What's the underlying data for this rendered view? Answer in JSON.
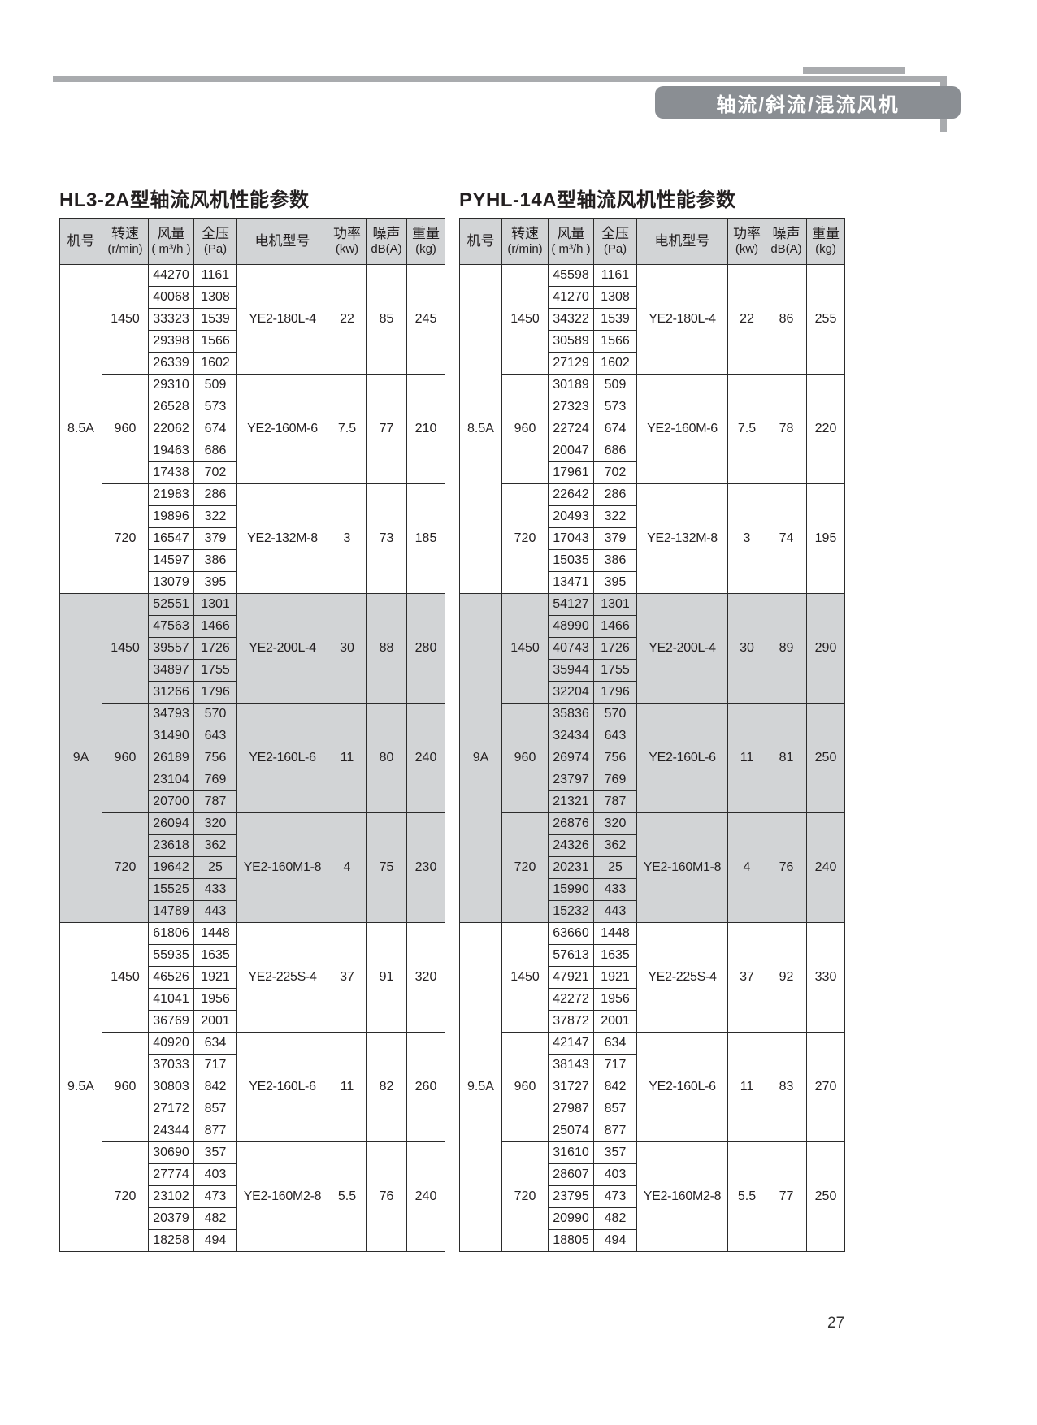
{
  "header": {
    "tab_label": "轴流/斜流/混流风机"
  },
  "footer": {
    "page_number": "27"
  },
  "colors": {
    "accent_gray": "#a9abae",
    "tab_gray": "#8a8e93",
    "shade_gray": "#d2d4d6",
    "border": "#2b2b2b"
  },
  "tables": [
    {
      "title": "HL3-2A型轴流风机性能参数",
      "column_headers": [
        {
          "line1": "机号",
          "line2": ""
        },
        {
          "line1": "转速",
          "line2": "(r/min)"
        },
        {
          "line1": "风量",
          "line2": "( m³/h )"
        },
        {
          "line1": "全压",
          "line2": "(Pa)"
        },
        {
          "line1": "电机型号",
          "line2": ""
        },
        {
          "line1": "功率",
          "line2": "(kw)"
        },
        {
          "line1": "噪声",
          "line2": "dB(A)"
        },
        {
          "line1": "重量",
          "line2": "(kg)"
        }
      ],
      "groups": [
        {
          "model": "8.5A",
          "shaded": false,
          "blocks": [
            {
              "speed": "1450",
              "motor": "YE2-180L-4",
              "power": "22",
              "noise": "85",
              "weight": "245",
              "rows": [
                [
                  "44270",
                  "1161"
                ],
                [
                  "40068",
                  "1308"
                ],
                [
                  "33323",
                  "1539"
                ],
                [
                  "29398",
                  "1566"
                ],
                [
                  "26339",
                  "1602"
                ]
              ]
            },
            {
              "speed": "960",
              "motor": "YE2-160M-6",
              "power": "7.5",
              "noise": "77",
              "weight": "210",
              "rows": [
                [
                  "29310",
                  "509"
                ],
                [
                  "26528",
                  "573"
                ],
                [
                  "22062",
                  "674"
                ],
                [
                  "19463",
                  "686"
                ],
                [
                  "17438",
                  "702"
                ]
              ]
            },
            {
              "speed": "720",
              "motor": "YE2-132M-8",
              "power": "3",
              "noise": "73",
              "weight": "185",
              "rows": [
                [
                  "21983",
                  "286"
                ],
                [
                  "19896",
                  "322"
                ],
                [
                  "16547",
                  "379"
                ],
                [
                  "14597",
                  "386"
                ],
                [
                  "13079",
                  "395"
                ]
              ]
            }
          ]
        },
        {
          "model": "9A",
          "shaded": true,
          "blocks": [
            {
              "speed": "1450",
              "motor": "YE2-200L-4",
              "power": "30",
              "noise": "88",
              "weight": "280",
              "rows": [
                [
                  "52551",
                  "1301"
                ],
                [
                  "47563",
                  "1466"
                ],
                [
                  "39557",
                  "1726"
                ],
                [
                  "34897",
                  "1755"
                ],
                [
                  "31266",
                  "1796"
                ]
              ]
            },
            {
              "speed": "960",
              "motor": "YE2-160L-6",
              "power": "11",
              "noise": "80",
              "weight": "240",
              "rows": [
                [
                  "34793",
                  "570"
                ],
                [
                  "31490",
                  "643"
                ],
                [
                  "26189",
                  "756"
                ],
                [
                  "23104",
                  "769"
                ],
                [
                  "20700",
                  "787"
                ]
              ]
            },
            {
              "speed": "720",
              "motor": "YE2-160M1-8",
              "power": "4",
              "noise": "75",
              "weight": "230",
              "rows": [
                [
                  "26094",
                  "320"
                ],
                [
                  "23618",
                  "362"
                ],
                [
                  "19642",
                  "25"
                ],
                [
                  "15525",
                  "433"
                ],
                [
                  "14789",
                  "443"
                ]
              ]
            }
          ]
        },
        {
          "model": "9.5A",
          "shaded": false,
          "blocks": [
            {
              "speed": "1450",
              "motor": "YE2-225S-4",
              "power": "37",
              "noise": "91",
              "weight": "320",
              "rows": [
                [
                  "61806",
                  "1448"
                ],
                [
                  "55935",
                  "1635"
                ],
                [
                  "46526",
                  "1921"
                ],
                [
                  "41041",
                  "1956"
                ],
                [
                  "36769",
                  "2001"
                ]
              ]
            },
            {
              "speed": "960",
              "motor": "YE2-160L-6",
              "power": "11",
              "noise": "82",
              "weight": "260",
              "rows": [
                [
                  "40920",
                  "634"
                ],
                [
                  "37033",
                  "717"
                ],
                [
                  "30803",
                  "842"
                ],
                [
                  "27172",
                  "857"
                ],
                [
                  "24344",
                  "877"
                ]
              ]
            },
            {
              "speed": "720",
              "motor": "YE2-160M2-8",
              "power": "5.5",
              "noise": "76",
              "weight": "240",
              "rows": [
                [
                  "30690",
                  "357"
                ],
                [
                  "27774",
                  "403"
                ],
                [
                  "23102",
                  "473"
                ],
                [
                  "20379",
                  "482"
                ],
                [
                  "18258",
                  "494"
                ]
              ]
            }
          ]
        }
      ]
    },
    {
      "title": "PYHL-14A型轴流风机性能参数",
      "column_headers": [
        {
          "line1": "机号",
          "line2": ""
        },
        {
          "line1": "转速",
          "line2": "(r/min)"
        },
        {
          "line1": "风量",
          "line2": "( m³/h )"
        },
        {
          "line1": "全压",
          "line2": "(Pa)"
        },
        {
          "line1": "电机型号",
          "line2": ""
        },
        {
          "line1": "功率",
          "line2": "(kw)"
        },
        {
          "line1": "噪声",
          "line2": "dB(A)"
        },
        {
          "line1": "重量",
          "line2": "(kg)"
        }
      ],
      "groups": [
        {
          "model": "8.5A",
          "shaded": false,
          "blocks": [
            {
              "speed": "1450",
              "motor": "YE2-180L-4",
              "power": "22",
              "noise": "86",
              "weight": "255",
              "rows": [
                [
                  "45598",
                  "1161"
                ],
                [
                  "41270",
                  "1308"
                ],
                [
                  "34322",
                  "1539"
                ],
                [
                  "30589",
                  "1566"
                ],
                [
                  "27129",
                  "1602"
                ]
              ]
            },
            {
              "speed": "960",
              "motor": "YE2-160M-6",
              "power": "7.5",
              "noise": "78",
              "weight": "220",
              "rows": [
                [
                  "30189",
                  "509"
                ],
                [
                  "27323",
                  "573"
                ],
                [
                  "22724",
                  "674"
                ],
                [
                  "20047",
                  "686"
                ],
                [
                  "17961",
                  "702"
                ]
              ]
            },
            {
              "speed": "720",
              "motor": "YE2-132M-8",
              "power": "3",
              "noise": "74",
              "weight": "195",
              "rows": [
                [
                  "22642",
                  "286"
                ],
                [
                  "20493",
                  "322"
                ],
                [
                  "17043",
                  "379"
                ],
                [
                  "15035",
                  "386"
                ],
                [
                  "13471",
                  "395"
                ]
              ]
            }
          ]
        },
        {
          "model": "9A",
          "shaded": true,
          "blocks": [
            {
              "speed": "1450",
              "motor": "YE2-200L-4",
              "power": "30",
              "noise": "89",
              "weight": "290",
              "rows": [
                [
                  "54127",
                  "1301"
                ],
                [
                  "48990",
                  "1466"
                ],
                [
                  "40743",
                  "1726"
                ],
                [
                  "35944",
                  "1755"
                ],
                [
                  "32204",
                  "1796"
                ]
              ]
            },
            {
              "speed": "960",
              "motor": "YE2-160L-6",
              "power": "11",
              "noise": "81",
              "weight": "250",
              "rows": [
                [
                  "35836",
                  "570"
                ],
                [
                  "32434",
                  "643"
                ],
                [
                  "26974",
                  "756"
                ],
                [
                  "23797",
                  "769"
                ],
                [
                  "21321",
                  "787"
                ]
              ]
            },
            {
              "speed": "720",
              "motor": "YE2-160M1-8",
              "power": "4",
              "noise": "76",
              "weight": "240",
              "rows": [
                [
                  "26876",
                  "320"
                ],
                [
                  "24326",
                  "362"
                ],
                [
                  "20231",
                  "25"
                ],
                [
                  "15990",
                  "433"
                ],
                [
                  "15232",
                  "443"
                ]
              ]
            }
          ]
        },
        {
          "model": "9.5A",
          "shaded": false,
          "blocks": [
            {
              "speed": "1450",
              "motor": "YE2-225S-4",
              "power": "37",
              "noise": "92",
              "weight": "330",
              "rows": [
                [
                  "63660",
                  "1448"
                ],
                [
                  "57613",
                  "1635"
                ],
                [
                  "47921",
                  "1921"
                ],
                [
                  "42272",
                  "1956"
                ],
                [
                  "37872",
                  "2001"
                ]
              ]
            },
            {
              "speed": "960",
              "motor": "YE2-160L-6",
              "power": "11",
              "noise": "83",
              "weight": "270",
              "rows": [
                [
                  "42147",
                  "634"
                ],
                [
                  "38143",
                  "717"
                ],
                [
                  "31727",
                  "842"
                ],
                [
                  "27987",
                  "857"
                ],
                [
                  "25074",
                  "877"
                ]
              ]
            },
            {
              "speed": "720",
              "motor": "YE2-160M2-8",
              "power": "5.5",
              "noise": "77",
              "weight": "250",
              "rows": [
                [
                  "31610",
                  "357"
                ],
                [
                  "28607",
                  "403"
                ],
                [
                  "23795",
                  "473"
                ],
                [
                  "20990",
                  "482"
                ],
                [
                  "18805",
                  "494"
                ]
              ]
            }
          ]
        }
      ]
    }
  ]
}
